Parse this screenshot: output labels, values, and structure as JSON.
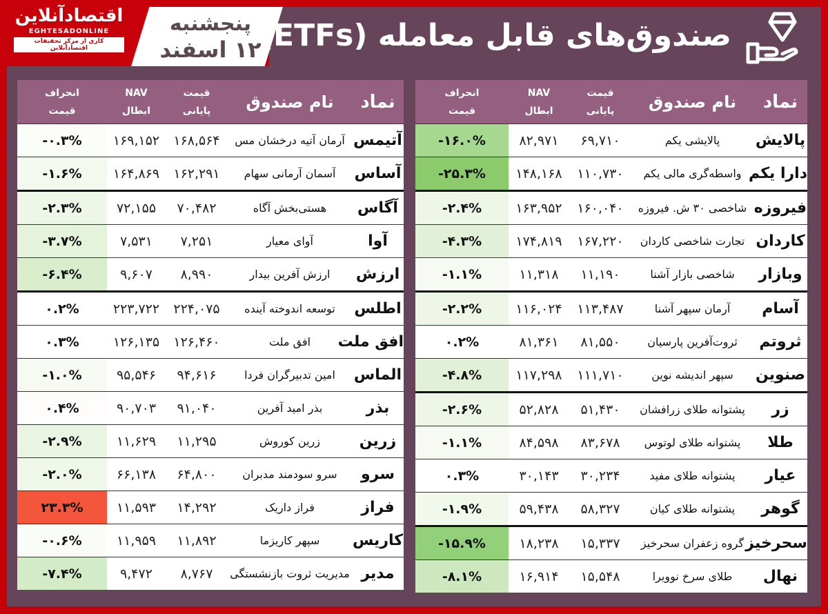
{
  "header": {
    "brand_fa": "اقتصادآنلاین",
    "brand_en": "EGHTESADONLINE",
    "brand_sub": "کاری از مرکز تحقیقات اقتصادآنلاین",
    "day": "پنجشنبه",
    "date": "۱۲ اسفند",
    "title": "صندوق‌های قابل معامله (ETFs)",
    "icon": "hand-diamond-icon"
  },
  "colors": {
    "border_red": "#c8000a",
    "frame_plum": "#664459",
    "header_plum": "#956080",
    "dev_green_strong": "#92d07a",
    "dev_green_mid": "#a9d98f",
    "dev_green_light": "#d3ebc7",
    "dev_green_pale": "#edf6e7",
    "dev_white": "#ffffff",
    "dev_red": "#f4563c"
  },
  "columns": {
    "symbol": "نماد",
    "fund_name": "نام صندوق",
    "price_l1": "قیمت",
    "price_l2": "پایانی",
    "nav_l1": "NAV",
    "nav_l2": "ابطال",
    "dev_l1": "انحراف",
    "dev_l2": "قیمت"
  },
  "right_table": [
    {
      "symbol": "پالایش",
      "name": "پالایشی یکم",
      "price": "۶۹,۷۱۰",
      "nav": "۸۲,۹۷۱",
      "dev": "-۱۶.۰%",
      "color": "#a6d88f"
    },
    {
      "symbol": "دارا یکم",
      "name": "واسطه‌گری مالی یکم",
      "price": "۱۱۰,۷۳۰",
      "nav": "۱۴۸,۱۶۸",
      "dev": "-۲۵.۳%",
      "color": "#8ccb6b"
    },
    {
      "symbol": "فیروزه",
      "name": "شاخصی ۳۰ ش. فیروزه",
      "price": "۱۶۰,۰۴۰",
      "nav": "۱۶۳,۹۵۲",
      "dev": "-۲.۴%",
      "color": "#edf6e7"
    },
    {
      "symbol": "کاردان",
      "name": "تجارت شاخصی کاردان",
      "price": "۱۶۷,۲۲۰",
      "nav": "۱۷۴,۸۱۹",
      "dev": "-۴.۳%",
      "color": "#e1f0d7"
    },
    {
      "symbol": "وبازار",
      "name": "شاخصی بازار آشنا",
      "price": "۱۱,۱۹۰",
      "nav": "۱۱,۳۱۸",
      "dev": "-۱.۱%",
      "color": "#f6faf2"
    },
    {
      "symbol": "آسام",
      "name": "آرمان سپهر آشنا",
      "price": "۱۱۳,۴۸۷",
      "nav": "۱۱۶,۰۲۴",
      "dev": "-۲.۲%",
      "color": "#edf6e7"
    },
    {
      "symbol": "ثروتم",
      "name": "ثروت‌آفرین پارسیان",
      "price": "۸۱,۵۵۰",
      "nav": "۸۱,۳۶۱",
      "dev": "۰.۲%",
      "color": "#ffffff"
    },
    {
      "symbol": "صنوین",
      "name": "سپهر اندیشه نوین",
      "price": "۱۱۱,۷۱۰",
      "nav": "۱۱۷,۲۹۸",
      "dev": "-۴.۸%",
      "color": "#e1f0d7"
    },
    {
      "symbol": "زر",
      "name": "پشتوانه طلای زرافشان",
      "price": "۵۱,۴۳۰",
      "nav": "۵۲,۸۲۸",
      "dev": "-۲.۶%",
      "color": "#edf6e7"
    },
    {
      "symbol": "طلا",
      "name": "پشتوانه طلای لوتوس",
      "price": "۸۳,۶۷۸",
      "nav": "۸۴,۵۹۸",
      "dev": "-۱.۱%",
      "color": "#f6faf2"
    },
    {
      "symbol": "عیار",
      "name": "پشتوانه طلای مفید",
      "price": "۳۰,۲۳۴",
      "nav": "۳۰,۱۴۳",
      "dev": "۰.۳%",
      "color": "#ffffff"
    },
    {
      "symbol": "گوهر",
      "name": "پشتوانه طلای کیان",
      "price": "۵۸,۳۲۷",
      "nav": "۵۹,۴۳۸",
      "dev": "-۱.۹%",
      "color": "#f1f8ec"
    },
    {
      "symbol": "سحرخیز",
      "name": "گروه زعفران سحرخیز",
      "price": "۱۵,۳۳۷",
      "nav": "۱۸,۲۳۸",
      "dev": "-۱۵.۹%",
      "color": "#92d07a"
    },
    {
      "symbol": "نهال",
      "name": "طلای سرخ نوویرا",
      "price": "۱۵,۵۴۸",
      "nav": "۱۶,۹۱۴",
      "dev": "-۸.۱%",
      "color": "#cde8bf"
    }
  ],
  "left_table": [
    {
      "symbol": "آتیمس",
      "name": "آرمان آتیه درخشان مس",
      "price": "۱۶۸,۵۶۴",
      "nav": "۱۶۹,۱۵۲",
      "dev": "-۰.۳%",
      "color": "#fbfdf9"
    },
    {
      "symbol": "آساس",
      "name": "آسمان آرمانی سهام",
      "price": "۱۶۲,۲۹۱",
      "nav": "۱۶۴,۸۶۹",
      "dev": "-۱.۶%",
      "color": "#f3f9ef"
    },
    {
      "symbol": "آگاس",
      "name": "هستی‌بخش آگاه",
      "price": "۷۰,۴۸۲",
      "nav": "۷۲,۱۵۵",
      "dev": "-۲.۳%",
      "color": "#edf6e7"
    },
    {
      "symbol": "آوا",
      "name": "آوای معیار",
      "price": "۷,۲۵۱",
      "nav": "۷,۵۳۱",
      "dev": "-۳.۷%",
      "color": "#e5f2dc"
    },
    {
      "symbol": "ارزش",
      "name": "ارزش آفرین بیدار",
      "price": "۸,۹۹۰",
      "nav": "۹,۶۰۷",
      "dev": "-۶.۴%",
      "color": "#d8edcc"
    },
    {
      "symbol": "اطلس",
      "name": "توسعه اندوخته آینده",
      "price": "۲۲۴,۰۷۵",
      "nav": "۲۲۳,۷۲۲",
      "dev": "۰.۲%",
      "color": "#ffffff"
    },
    {
      "symbol": "افق ملت",
      "name": "افق ملت",
      "price": "۱۲۶,۴۶۰",
      "nav": "۱۲۶,۱۳۵",
      "dev": "۰.۳%",
      "color": "#ffffff"
    },
    {
      "symbol": "الماس",
      "name": "امین تدبیرگران فردا",
      "price": "۹۴,۶۱۶",
      "nav": "۹۵,۵۴۶",
      "dev": "-۱.۰%",
      "color": "#f6faf2"
    },
    {
      "symbol": "بذر",
      "name": "بذر امید آفرین",
      "price": "۹۱,۰۴۰",
      "nav": "۹۰,۷۰۳",
      "dev": "۰.۴%",
      "color": "#fffdfc"
    },
    {
      "symbol": "زرین",
      "name": "زرین کوروش",
      "price": "۱۱,۲۹۵",
      "nav": "۱۱,۶۲۹",
      "dev": "-۲.۹%",
      "color": "#eaf4e3"
    },
    {
      "symbol": "سرو",
      "name": "سرو سودمند مدبران",
      "price": "۶۴,۸۰۰",
      "nav": "۶۶,۱۳۸",
      "dev": "-۲.۰%",
      "color": "#eef7e9"
    },
    {
      "symbol": "فراز",
      "name": "فراز داریک",
      "price": "۱۴,۲۹۲",
      "nav": "۱۱,۵۹۳",
      "dev": "۲۳.۳%",
      "color": "#f4563c"
    },
    {
      "symbol": "کاریس",
      "name": "سپهر کاریزما",
      "price": "۱۱,۸۹۲",
      "nav": "۱۱,۹۵۹",
      "dev": "-۰.۶%",
      "color": "#fafcf8"
    },
    {
      "symbol": "مدیر",
      "name": "مدیریت ثروت بازنشستگی",
      "price": "۸,۷۶۷",
      "nav": "۹,۴۷۲",
      "dev": "-۷.۴%",
      "color": "#d3ebc7"
    }
  ]
}
